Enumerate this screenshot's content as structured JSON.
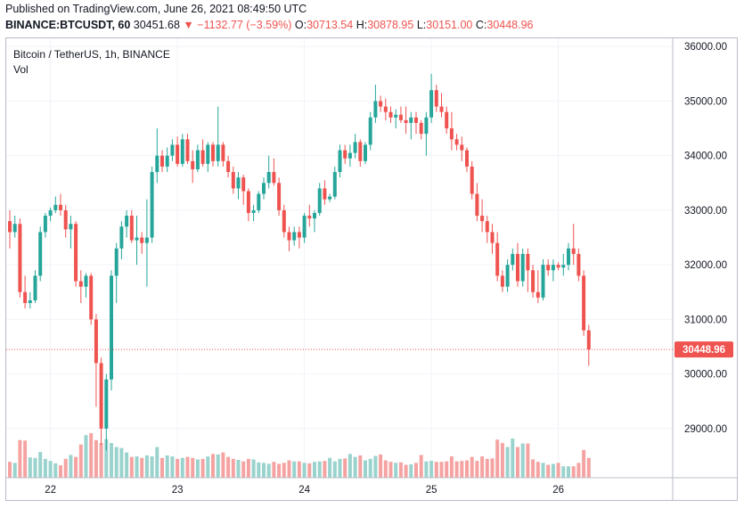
{
  "header": {
    "published": "Published on TradingView.com, June 26, 2021 08:49:50 UTC",
    "symbol_code": "BINANCE:BTCUSDT, 60",
    "last_price": "30451.68",
    "change": "−1132.77 (−3.59%)",
    "o_label": "O:",
    "o_value": "30713.54",
    "h_label": "H:",
    "h_value": "30878.95",
    "l_label": "L:",
    "l_value": "30151.00",
    "c_label": "C:",
    "c_value": "30448.96"
  },
  "legend": {
    "title": "Bitcoin / TetherUS, 1h, BINANCE",
    "vol": "Vol"
  },
  "colors": {
    "up": "#26a69a",
    "down": "#ef5350",
    "up_vol": "#9ad3cd",
    "down_vol": "#f5a3a2",
    "grid": "#f0f3fa"
  },
  "chart_data": {
    "type": "candlestick",
    "ylim": [
      28100,
      36150
    ],
    "y_ticks": [
      "36000.00",
      "35000.00",
      "34000.00",
      "33000.00",
      "32000.00",
      "31000.00",
      "30000.00",
      "29000.00"
    ],
    "y_tick_values": [
      36000,
      35000,
      34000,
      33000,
      32000,
      31000,
      30000,
      29000
    ],
    "x_ticks": [
      "22",
      "23",
      "24",
      "25",
      "26"
    ],
    "x_tick_index": [
      8,
      33,
      58,
      83,
      108
    ],
    "last_value": 30448.96,
    "last_label": "30448.96",
    "series": [
      {
        "name": "BTCUSDT",
        "ohlc": [
          [
            32800,
            33000,
            32300,
            32600
          ],
          [
            32600,
            32900,
            32500,
            32750
          ],
          [
            32750,
            32850,
            31400,
            31500
          ],
          [
            31500,
            31800,
            31200,
            31300
          ],
          [
            31300,
            31500,
            31200,
            31350
          ],
          [
            31350,
            31900,
            31300,
            31800
          ],
          [
            31800,
            32700,
            31700,
            32600
          ],
          [
            32600,
            32950,
            32500,
            32900
          ],
          [
            32900,
            33050,
            32800,
            33000
          ],
          [
            33000,
            33250,
            32950,
            33100
          ],
          [
            33100,
            33300,
            32900,
            33000
          ],
          [
            33000,
            33100,
            32500,
            32650
          ],
          [
            32650,
            32900,
            32300,
            32750
          ],
          [
            32750,
            32800,
            31600,
            31700
          ],
          [
            31700,
            31900,
            31300,
            31600
          ],
          [
            31600,
            31850,
            31400,
            31800
          ],
          [
            31800,
            31850,
            30900,
            31000
          ],
          [
            31000,
            31100,
            29400,
            30200
          ],
          [
            30200,
            30300,
            28700,
            29000
          ],
          [
            29000,
            30000,
            28600,
            29900
          ],
          [
            29900,
            31900,
            29700,
            31800
          ],
          [
            31800,
            32400,
            31300,
            32300
          ],
          [
            32300,
            32800,
            32100,
            32700
          ],
          [
            32700,
            33000,
            32500,
            32900
          ],
          [
            32900,
            33000,
            32400,
            32450
          ],
          [
            32450,
            32900,
            32000,
            32500
          ],
          [
            32500,
            32600,
            32200,
            32400
          ],
          [
            32400,
            33200,
            31600,
            32500
          ],
          [
            32500,
            33800,
            32400,
            33700
          ],
          [
            33700,
            34500,
            33500,
            34000
          ],
          [
            34000,
            34100,
            33700,
            33800
          ],
          [
            33800,
            34150,
            33700,
            34000
          ],
          [
            34000,
            34300,
            33900,
            34200
          ],
          [
            34200,
            34350,
            33800,
            33850
          ],
          [
            33850,
            34400,
            33800,
            34300
          ],
          [
            34300,
            34400,
            33850,
            33900
          ],
          [
            33900,
            34100,
            33500,
            33750
          ],
          [
            33750,
            34200,
            33700,
            34100
          ],
          [
            34100,
            34300,
            33800,
            33850
          ],
          [
            33850,
            34250,
            33700,
            34200
          ],
          [
            34200,
            34250,
            33800,
            33900
          ],
          [
            33900,
            34900,
            33800,
            34200
          ],
          [
            34200,
            34250,
            33800,
            33900
          ],
          [
            33900,
            34000,
            33600,
            33700
          ],
          [
            33700,
            33800,
            33300,
            33400
          ],
          [
            33400,
            33700,
            33200,
            33600
          ],
          [
            33600,
            33650,
            33100,
            33350
          ],
          [
            33350,
            33400,
            32800,
            32950
          ],
          [
            32950,
            33100,
            32800,
            33000
          ],
          [
            33000,
            33350,
            32950,
            33300
          ],
          [
            33300,
            33600,
            33200,
            33500
          ],
          [
            33500,
            34000,
            33400,
            33700
          ],
          [
            33700,
            33950,
            33450,
            33500
          ],
          [
            33500,
            33600,
            32900,
            33000
          ],
          [
            33000,
            33100,
            32500,
            32600
          ],
          [
            32600,
            32700,
            32250,
            32450
          ],
          [
            32450,
            32700,
            32350,
            32600
          ],
          [
            32600,
            32700,
            32300,
            32500
          ],
          [
            32500,
            32950,
            32400,
            32900
          ],
          [
            32900,
            33100,
            32700,
            32850
          ],
          [
            32850,
            33000,
            32600,
            32950
          ],
          [
            32950,
            33500,
            32900,
            33400
          ],
          [
            33400,
            33550,
            33100,
            33200
          ],
          [
            33200,
            33300,
            33150,
            33250
          ],
          [
            33250,
            33800,
            33200,
            33700
          ],
          [
            33700,
            34200,
            33600,
            34100
          ],
          [
            34100,
            34200,
            33850,
            33950
          ],
          [
            33950,
            34200,
            33800,
            34050
          ],
          [
            34050,
            34400,
            33950,
            34250
          ],
          [
            34250,
            34300,
            33800,
            33900
          ],
          [
            33900,
            34250,
            33850,
            34200
          ],
          [
            34200,
            34800,
            34100,
            34700
          ],
          [
            34700,
            35300,
            34600,
            35000
          ],
          [
            35000,
            35100,
            34800,
            34900
          ],
          [
            34900,
            35050,
            34650,
            34800
          ],
          [
            34800,
            34900,
            34600,
            34700
          ],
          [
            34700,
            34850,
            34500,
            34750
          ],
          [
            34750,
            34900,
            34600,
            34650
          ],
          [
            34650,
            34900,
            34400,
            34600
          ],
          [
            34600,
            34800,
            34300,
            34700
          ],
          [
            34700,
            34800,
            34400,
            34600
          ],
          [
            34600,
            34650,
            34300,
            34400
          ],
          [
            34400,
            34800,
            34000,
            34700
          ],
          [
            34700,
            35500,
            34600,
            35200
          ],
          [
            35200,
            35300,
            34800,
            34900
          ],
          [
            34900,
            35150,
            34700,
            34800
          ],
          [
            34800,
            34900,
            34400,
            34500
          ],
          [
            34500,
            34800,
            34100,
            34300
          ],
          [
            34300,
            34400,
            34100,
            34200
          ],
          [
            34200,
            34350,
            33900,
            34100
          ],
          [
            34100,
            34150,
            33700,
            33800
          ],
          [
            33800,
            33900,
            33200,
            33300
          ],
          [
            33300,
            33500,
            32800,
            32900
          ],
          [
            32900,
            33200,
            32600,
            32800
          ],
          [
            32800,
            32900,
            32400,
            32600
          ],
          [
            32600,
            32750,
            32200,
            32400
          ],
          [
            32400,
            32600,
            31700,
            31800
          ],
          [
            31800,
            31900,
            31500,
            31600
          ],
          [
            31600,
            32100,
            31500,
            32000
          ],
          [
            32000,
            32300,
            31900,
            32200
          ],
          [
            32200,
            32400,
            31600,
            31700
          ],
          [
            31700,
            32300,
            31600,
            32200
          ],
          [
            32200,
            32300,
            31500,
            31900
          ],
          [
            31900,
            32000,
            31400,
            31500
          ],
          [
            31500,
            31900,
            31300,
            31400
          ],
          [
            31400,
            32100,
            31350,
            32000
          ],
          [
            32000,
            32100,
            31800,
            31900
          ],
          [
            31900,
            32100,
            31700,
            32000
          ],
          [
            32000,
            32050,
            31900,
            31950
          ],
          [
            31950,
            32200,
            31800,
            32000
          ],
          [
            32000,
            32400,
            31900,
            32300
          ],
          [
            32300,
            32750,
            32000,
            32200
          ],
          [
            32200,
            32300,
            31700,
            31800
          ],
          [
            31800,
            31900,
            30700,
            30800
          ],
          [
            30800,
            30900,
            30150,
            30450
          ]
        ]
      },
      {
        "name": "Volume",
        "values": [
          320,
          300,
          760,
          750,
          410,
          400,
          520,
          380,
          340,
          290,
          250,
          380,
          460,
          420,
          670,
          860,
          900,
          760,
          700,
          780,
          700,
          620,
          600,
          510,
          420,
          430,
          400,
          450,
          430,
          620,
          400,
          450,
          430,
          380,
          400,
          420,
          400,
          370,
          380,
          430,
          480,
          470,
          510,
          420,
          380,
          360,
          330,
          380,
          370,
          310,
          300,
          280,
          320,
          280,
          300,
          350,
          330,
          330,
          300,
          290,
          320,
          330,
          340,
          400,
          330,
          380,
          390,
          480,
          420,
          450,
          350,
          380,
          440,
          470,
          350,
          320,
          300,
          310,
          260,
          270,
          300,
          460,
          330,
          340,
          320,
          320,
          330,
          430,
          330,
          340,
          350,
          420,
          340,
          430,
          380,
          390,
          770,
          700,
          620,
          790,
          620,
          690,
          690,
          370,
          320,
          300,
          260,
          280,
          300,
          230,
          230,
          230,
          300,
          560,
          400
        ]
      }
    ]
  }
}
